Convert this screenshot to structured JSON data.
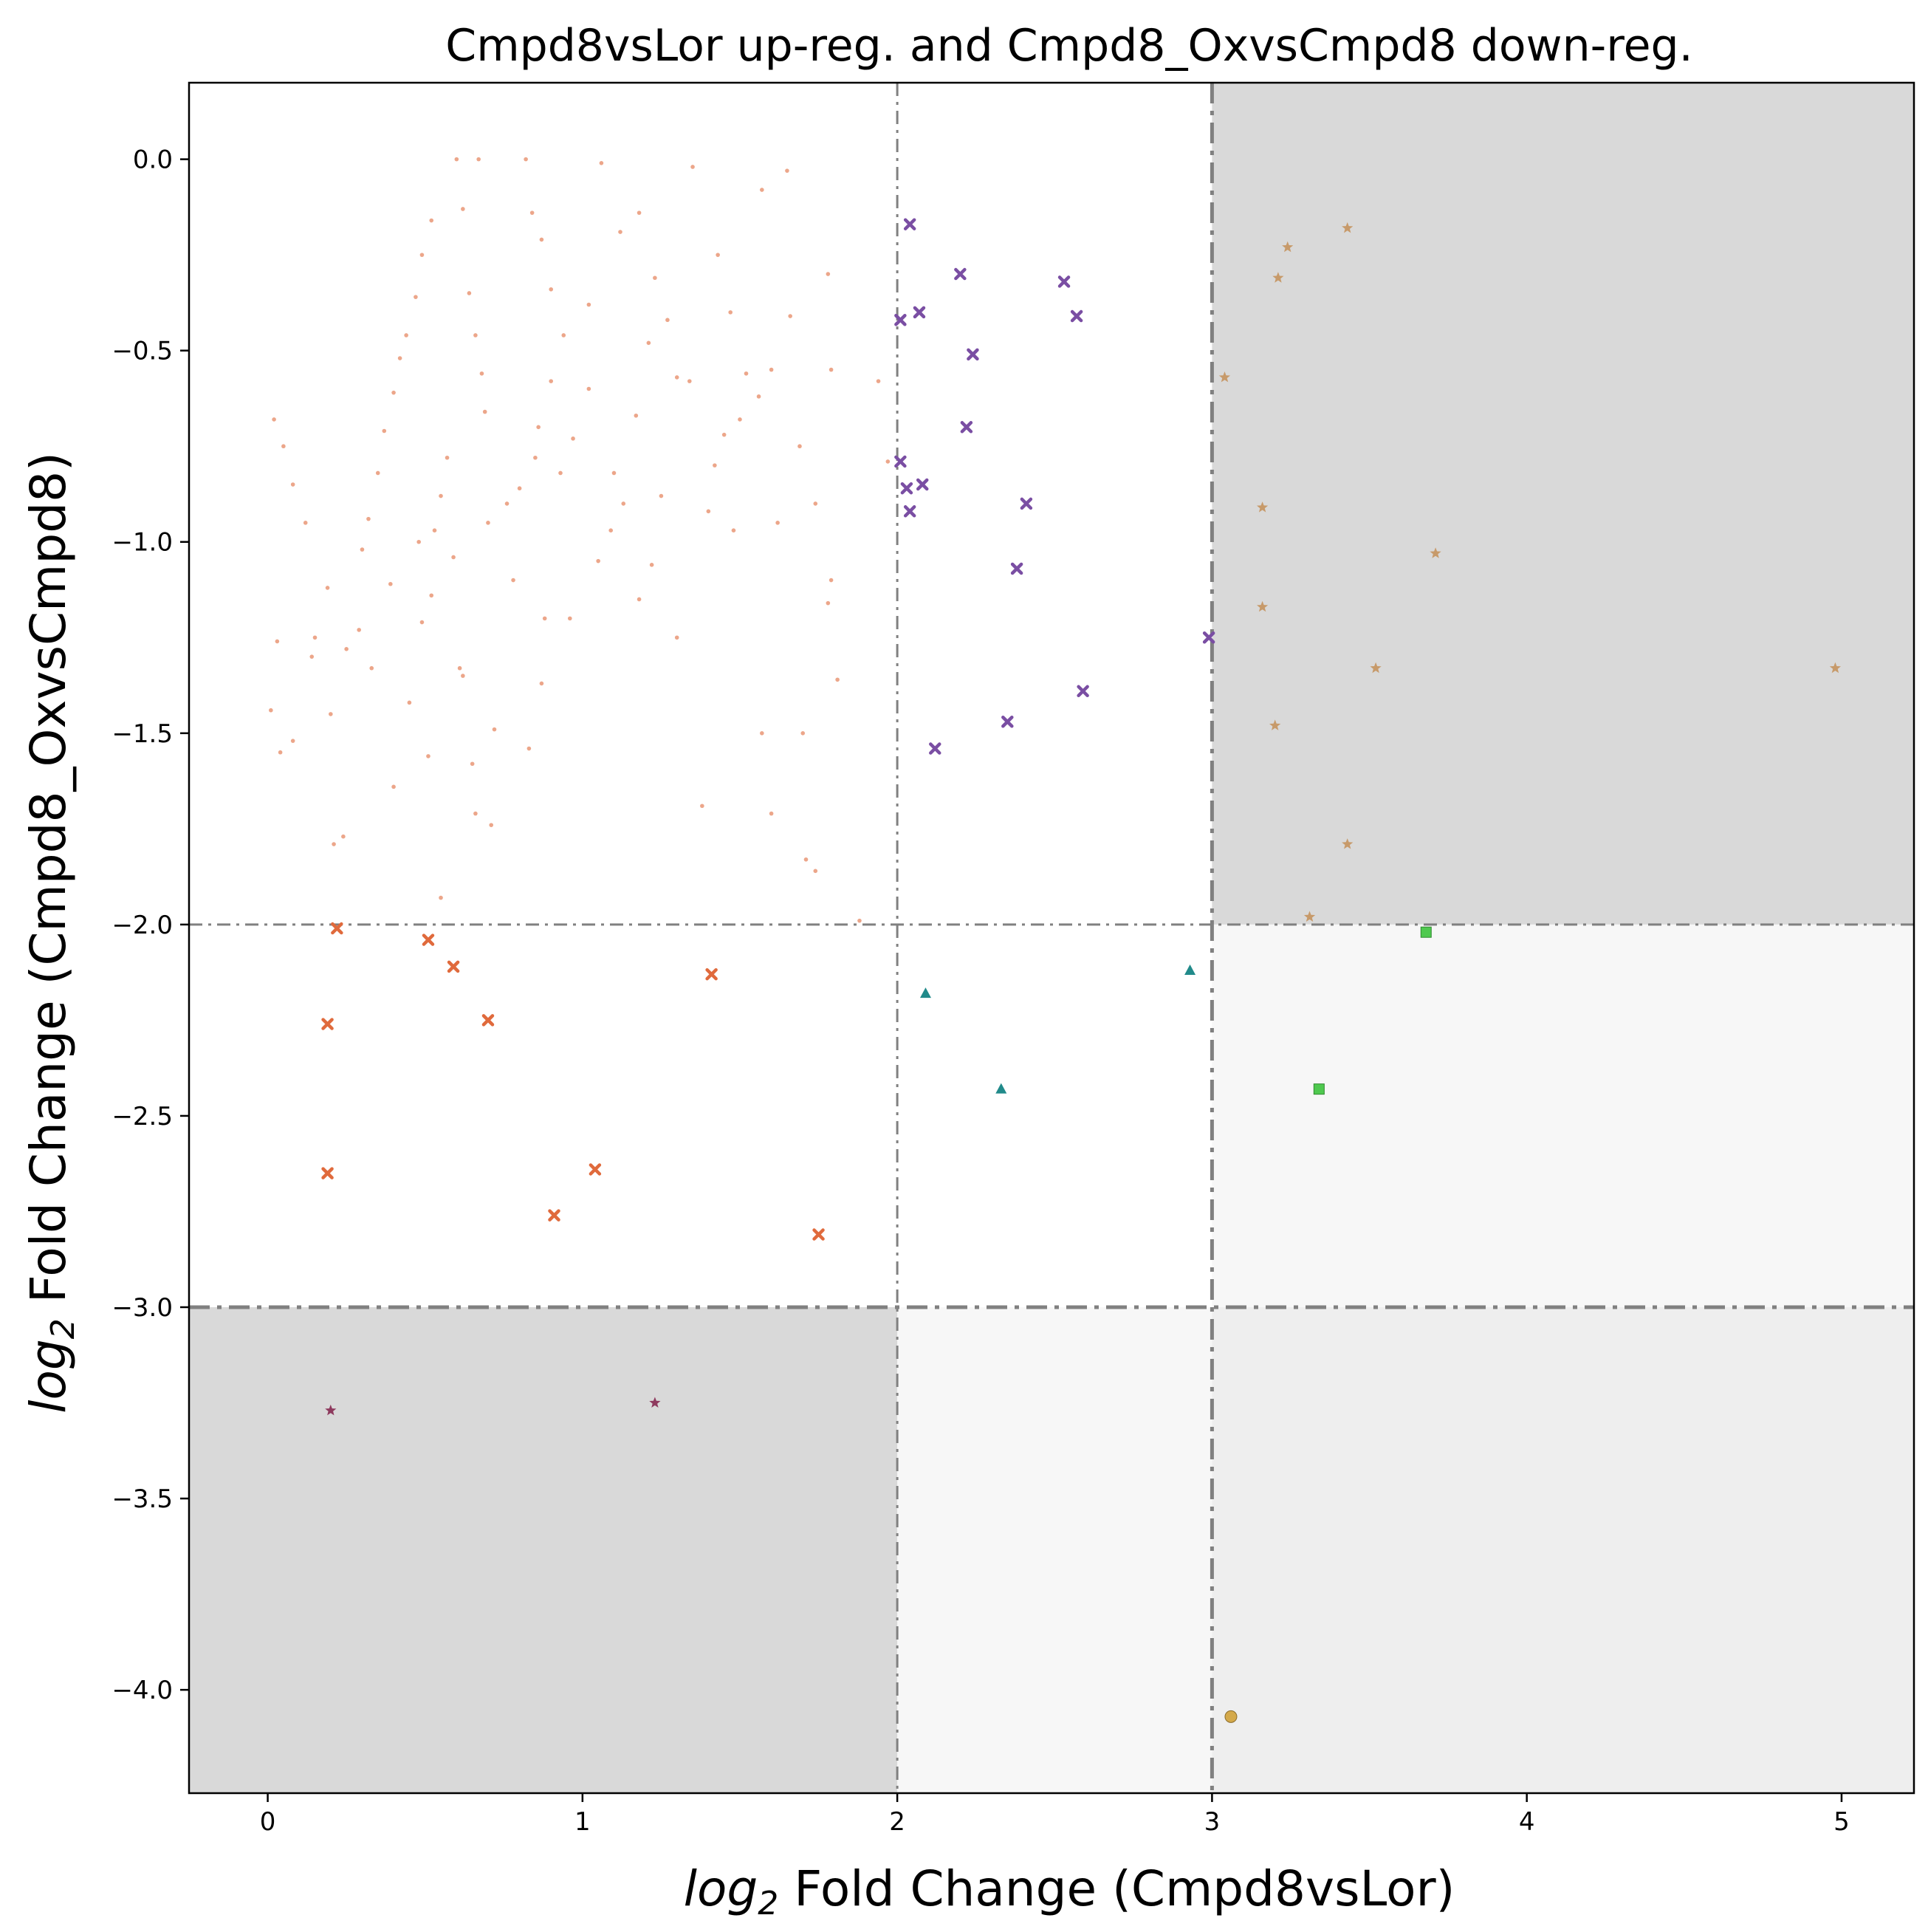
{
  "chart_data": {
    "type": "scatter",
    "title": "Cmpd8vsLor up-reg. and Cmpd8_OxvsCmpd8 down-reg.",
    "xlabel_italic": "log",
    "xlabel_sub": "2",
    "xlabel_rest": " Fold Change (Cmpd8vsLor)",
    "ylabel_italic": "log",
    "ylabel_sub": "2",
    "ylabel_rest": " Fold Change (Cmpd8_OxvsCmpd8)",
    "xlim": [
      -0.25,
      5.23
    ],
    "ylim": [
      -4.27,
      0.2
    ],
    "xticks": [
      0,
      1,
      2,
      3,
      4,
      5
    ],
    "xtick_labels": [
      "0",
      "1",
      "2",
      "3",
      "4",
      "5"
    ],
    "yticks": [
      0.0,
      -0.5,
      -1.0,
      -1.5,
      -2.0,
      -2.5,
      -3.0,
      -3.5,
      -4.0
    ],
    "ytick_labels": [
      "0.0",
      "−0.5",
      "−1.0",
      "−1.5",
      "−2.0",
      "−2.5",
      "−3.0",
      "−3.5",
      "−4.0"
    ],
    "grid": false,
    "legend": "none",
    "threshold_lines": {
      "x": [
        2,
        3
      ],
      "y": [
        -2,
        -3
      ]
    },
    "regions": [
      {
        "x": [
          3,
          5.23
        ],
        "y": [
          -2,
          0.2
        ],
        "color": "#d9d9d9"
      },
      {
        "x": [
          3,
          5.23
        ],
        "y": [
          -3,
          -2
        ],
        "color": "#f7f7f7"
      },
      {
        "x": [
          3,
          5.23
        ],
        "y": [
          -4.27,
          -3
        ],
        "color": "#eeeeee"
      },
      {
        "x": [
          2,
          3
        ],
        "y": [
          -4.27,
          -3
        ],
        "color": "#f7f7f7"
      },
      {
        "x": [
          -0.25,
          2
        ],
        "y": [
          -4.27,
          -3
        ],
        "color": "#d9d9d9"
      }
    ],
    "series": [
      {
        "marker": "dot",
        "color": "#e06a3c",
        "points": [
          [
            0.02,
            -0.68
          ],
          [
            0.05,
            -0.75
          ],
          [
            0.08,
            -0.85
          ],
          [
            0.12,
            -0.95
          ],
          [
            0.03,
            -1.26
          ],
          [
            0.01,
            -1.44
          ],
          [
            0.04,
            -1.55
          ],
          [
            0.08,
            -1.52
          ],
          [
            0.15,
            -1.25
          ],
          [
            0.14,
            -1.3
          ],
          [
            0.19,
            -1.12
          ],
          [
            0.2,
            -1.45
          ],
          [
            0.21,
            -1.79
          ],
          [
            0.24,
            -1.77
          ],
          [
            0.25,
            -1.28
          ],
          [
            0.29,
            -1.23
          ],
          [
            0.33,
            -1.33
          ],
          [
            0.4,
            -1.64
          ],
          [
            0.45,
            -1.42
          ],
          [
            0.48,
            -1.0
          ],
          [
            0.49,
            -1.21
          ],
          [
            0.51,
            -1.56
          ],
          [
            0.52,
            -1.14
          ],
          [
            0.55,
            -1.93
          ],
          [
            0.61,
            -1.33
          ],
          [
            0.62,
            -1.35
          ],
          [
            0.65,
            -1.58
          ],
          [
            0.66,
            -1.71
          ],
          [
            0.71,
            -1.74
          ],
          [
            0.72,
            -1.49
          ],
          [
            0.78,
            -1.1
          ],
          [
            0.83,
            -1.54
          ],
          [
            0.87,
            -1.37
          ],
          [
            0.88,
            -1.2
          ],
          [
            0.96,
            -1.2
          ],
          [
            1.05,
            -1.05
          ],
          [
            1.1,
            -0.82
          ],
          [
            1.18,
            -1.15
          ],
          [
            1.22,
            -1.06
          ],
          [
            1.3,
            -1.25
          ],
          [
            1.38,
            -1.69
          ],
          [
            1.48,
            -0.97
          ],
          [
            1.57,
            -1.5
          ],
          [
            1.6,
            -1.71
          ],
          [
            1.7,
            -1.5
          ],
          [
            1.71,
            -1.83
          ],
          [
            1.74,
            -1.86
          ],
          [
            1.78,
            -1.16
          ],
          [
            1.79,
            -1.1
          ],
          [
            1.81,
            -1.36
          ],
          [
            1.88,
            -1.99
          ],
          [
            1.94,
            -0.58
          ],
          [
            1.97,
            -0.79
          ],
          [
            1.65,
            -0.03
          ],
          [
            1.57,
            -0.08
          ],
          [
            1.35,
            -0.02
          ],
          [
            1.06,
            -0.01
          ],
          [
            0.82,
            -0.0
          ],
          [
            0.67,
            -0.0
          ],
          [
            0.6,
            -0.0
          ],
          [
            1.56,
            -0.62
          ],
          [
            1.52,
            -0.56
          ],
          [
            1.5,
            -0.68
          ],
          [
            1.45,
            -0.72
          ],
          [
            1.42,
            -0.8
          ],
          [
            1.4,
            -0.92
          ],
          [
            1.34,
            -0.58
          ],
          [
            1.3,
            -0.57
          ],
          [
            1.27,
            -0.42
          ],
          [
            1.23,
            -0.31
          ],
          [
            1.18,
            -0.14
          ],
          [
            1.12,
            -0.19
          ],
          [
            1.02,
            -0.38
          ],
          [
            0.94,
            -0.46
          ],
          [
            0.9,
            -0.58
          ],
          [
            0.86,
            -0.7
          ],
          [
            0.85,
            -0.78
          ],
          [
            0.8,
            -0.86
          ],
          [
            0.76,
            -0.9
          ],
          [
            0.7,
            -0.95
          ],
          [
            1.69,
            -0.75
          ],
          [
            1.66,
            -0.41
          ],
          [
            1.78,
            -0.3
          ],
          [
            1.79,
            -0.55
          ],
          [
            1.74,
            -0.9
          ],
          [
            1.62,
            -0.95
          ],
          [
            1.6,
            -0.55
          ],
          [
            1.47,
            -0.4
          ],
          [
            1.43,
            -0.25
          ],
          [
            1.25,
            -0.88
          ],
          [
            1.21,
            -0.48
          ],
          [
            1.17,
            -0.67
          ],
          [
            1.13,
            -0.9
          ],
          [
            1.09,
            -0.97
          ],
          [
            1.02,
            -0.6
          ],
          [
            0.97,
            -0.73
          ],
          [
            0.93,
            -0.82
          ],
          [
            0.9,
            -0.34
          ],
          [
            0.87,
            -0.21
          ],
          [
            0.84,
            -0.14
          ],
          [
            0.52,
            -0.16
          ],
          [
            0.49,
            -0.25
          ],
          [
            0.47,
            -0.36
          ],
          [
            0.44,
            -0.46
          ],
          [
            0.42,
            -0.52
          ],
          [
            0.4,
            -0.61
          ],
          [
            0.37,
            -0.71
          ],
          [
            0.35,
            -0.82
          ],
          [
            0.32,
            -0.94
          ],
          [
            0.3,
            -1.02
          ],
          [
            0.62,
            -0.13
          ],
          [
            0.64,
            -0.35
          ],
          [
            0.66,
            -0.46
          ],
          [
            0.68,
            -0.56
          ],
          [
            0.69,
            -0.66
          ],
          [
            0.57,
            -0.78
          ],
          [
            0.55,
            -0.88
          ],
          [
            0.53,
            -0.97
          ],
          [
            0.59,
            -1.04
          ],
          [
            0.39,
            -1.11
          ]
        ]
      },
      {
        "marker": "x",
        "color": "#e06a3c",
        "points": [
          [
            0.22,
            -2.01
          ],
          [
            0.51,
            -2.04
          ],
          [
            0.59,
            -2.11
          ],
          [
            0.19,
            -2.26
          ],
          [
            0.7,
            -2.25
          ],
          [
            1.41,
            -2.13
          ],
          [
            0.19,
            -2.65
          ],
          [
            1.04,
            -2.64
          ],
          [
            0.91,
            -2.76
          ],
          [
            1.75,
            -2.81
          ]
        ]
      },
      {
        "marker": "x",
        "color": "#7a4ea3",
        "points": [
          [
            2.04,
            -0.17
          ],
          [
            2.2,
            -0.3
          ],
          [
            2.53,
            -0.32
          ],
          [
            2.07,
            -0.4
          ],
          [
            2.01,
            -0.42
          ],
          [
            2.57,
            -0.41
          ],
          [
            2.24,
            -0.51
          ],
          [
            2.22,
            -0.7
          ],
          [
            2.01,
            -0.79
          ],
          [
            2.03,
            -0.86
          ],
          [
            2.08,
            -0.85
          ],
          [
            2.04,
            -0.92
          ],
          [
            2.41,
            -0.9
          ],
          [
            2.38,
            -1.07
          ],
          [
            2.99,
            -1.25
          ],
          [
            2.59,
            -1.39
          ],
          [
            2.35,
            -1.47
          ],
          [
            2.12,
            -1.54
          ]
        ]
      },
      {
        "marker": "star",
        "color": "#c79a6a",
        "points": [
          [
            3.43,
            -0.18
          ],
          [
            3.24,
            -0.23
          ],
          [
            3.21,
            -0.31
          ],
          [
            3.04,
            -0.57
          ],
          [
            3.16,
            -0.91
          ],
          [
            3.71,
            -1.03
          ],
          [
            3.16,
            -1.17
          ],
          [
            3.52,
            -1.33
          ],
          [
            4.98,
            -1.33
          ],
          [
            3.2,
            -1.48
          ],
          [
            3.43,
            -1.79
          ],
          [
            3.31,
            -1.98
          ]
        ]
      },
      {
        "marker": "triangle",
        "color": "#218a8a",
        "points": [
          [
            2.09,
            -2.18
          ],
          [
            2.93,
            -2.12
          ],
          [
            2.33,
            -2.43
          ]
        ]
      },
      {
        "marker": "square",
        "color": "#4fc94f",
        "points": [
          [
            3.68,
            -2.02
          ],
          [
            3.34,
            -2.43
          ]
        ]
      },
      {
        "marker": "star",
        "color": "#8e3a5e",
        "points": [
          [
            0.2,
            -3.27
          ],
          [
            1.23,
            -3.25
          ]
        ]
      },
      {
        "marker": "circle",
        "color": "#d4a94a",
        "points": [
          [
            3.06,
            -4.07
          ]
        ]
      }
    ]
  }
}
